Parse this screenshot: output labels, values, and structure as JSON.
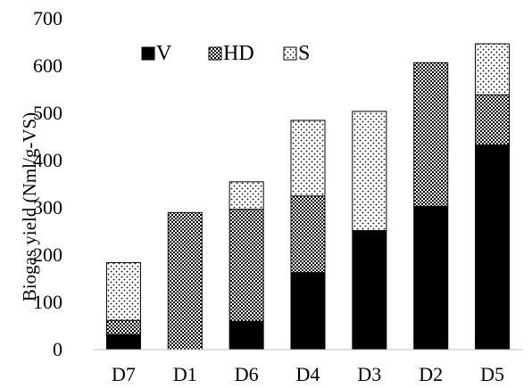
{
  "chart_data": {
    "type": "bar",
    "stacked": true,
    "categories": [
      "D7",
      "D1",
      "D6",
      "D4",
      "D3",
      "D2",
      "D5"
    ],
    "series": [
      {
        "name": "V",
        "pattern": "solid",
        "color": "#000000",
        "values": [
          32,
          0,
          60,
          163,
          252,
          303,
          433
        ]
      },
      {
        "name": "HD",
        "pattern": "crosshatch",
        "color": "#000000",
        "values": [
          30,
          290,
          237,
          162,
          0,
          304,
          106
        ]
      },
      {
        "name": "S",
        "pattern": "dots",
        "color": "#000000",
        "values": [
          122,
          0,
          58,
          160,
          252,
          0,
          108
        ]
      }
    ],
    "title": "",
    "xlabel": "",
    "ylabel": "Biogas yield (Nml/g-VS)",
    "ylim": [
      0,
      700
    ],
    "yticks": [
      0,
      100,
      200,
      300,
      400,
      500,
      600,
      700
    ],
    "grid": false,
    "legend": "top-left"
  }
}
